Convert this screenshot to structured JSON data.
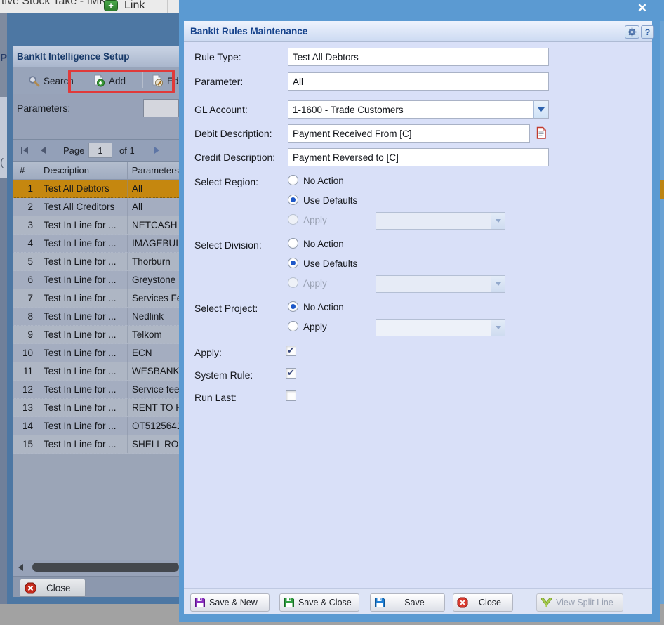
{
  "colors": {
    "modal_chrome": "#5b9ad2",
    "modal_body": "#d9e0f8",
    "annotation_red": "#e03a3a",
    "selected_row": "#c5870f",
    "dialog_title_blue": "#15428b"
  },
  "top_bar": {
    "tab_label": "tive Stock Take - IMK",
    "link_label": "Link",
    "link_plus_glyph": "+"
  },
  "left_edge": {
    "fragments": [
      "P",
      "("
    ]
  },
  "setup_window": {
    "title": "BankIt Intelligence Setup",
    "toolbar": {
      "search": "Search",
      "add": "Add",
      "edit": "Edit"
    },
    "parameters_label": "Parameters:",
    "paging": {
      "page_label": "Page",
      "page_value": "1",
      "of_label": "of 1"
    },
    "grid": {
      "columns": [
        "#",
        "Description",
        "Parameters"
      ],
      "rows": [
        {
          "n": "1",
          "desc": "Test All Debtors",
          "param": "All",
          "selected": true
        },
        {
          "n": "2",
          "desc": "Test All Creditors",
          "param": "All"
        },
        {
          "n": "3",
          "desc": "Test In Line for ...",
          "param": "NETCASH"
        },
        {
          "n": "4",
          "desc": "Test In Line for ...",
          "param": "IMAGEBUIL"
        },
        {
          "n": "5",
          "desc": "Test In Line for ...",
          "param": "Thorburn"
        },
        {
          "n": "6",
          "desc": "Test In Line for ...",
          "param": "Greystone"
        },
        {
          "n": "7",
          "desc": "Test In Line for ...",
          "param": "Services Fe"
        },
        {
          "n": "8",
          "desc": "Test In Line for ...",
          "param": "Nedlink"
        },
        {
          "n": "9",
          "desc": "Test In Line for ...",
          "param": "Telkom"
        },
        {
          "n": "10",
          "desc": "Test In Line for ...",
          "param": "ECN"
        },
        {
          "n": "11",
          "desc": "Test In Line for ...",
          "param": "WESBANK"
        },
        {
          "n": "12",
          "desc": "Test In Line for ...",
          "param": "Service fee"
        },
        {
          "n": "13",
          "desc": "Test In Line for ...",
          "param": "RENT TO H"
        },
        {
          "n": "14",
          "desc": "Test In Line for ...",
          "param": "OT5125641"
        },
        {
          "n": "15",
          "desc": "Test In Line for ...",
          "param": "SHELL ROS"
        }
      ]
    },
    "close_label": "Close"
  },
  "dialog": {
    "title": "BankIt Rules Maintenance",
    "close_glyph": "✕",
    "help_glyph": "?",
    "fields": {
      "rule_type": {
        "label": "Rule Type:",
        "value": "Test All Debtors"
      },
      "parameter": {
        "label": "Parameter:",
        "value": "All"
      },
      "gl_account": {
        "label": "GL Account:",
        "value": "1-1600 - Trade Customers"
      },
      "debit_desc": {
        "label": "Debit Description:",
        "value": "Payment Received From [C]"
      },
      "credit_desc": {
        "label": "Credit Description:",
        "value": "Payment Reversed to [C]"
      }
    },
    "region": {
      "label": "Select Region:",
      "options": [
        {
          "text": "No Action",
          "on": false
        },
        {
          "text": "Use Defaults",
          "on": true
        },
        {
          "text": "Apply",
          "on": false,
          "disabled": true
        }
      ]
    },
    "division": {
      "label": "Select Division:",
      "options": [
        {
          "text": "No Action",
          "on": false
        },
        {
          "text": "Use Defaults",
          "on": true
        },
        {
          "text": "Apply",
          "on": false,
          "disabled": true
        }
      ]
    },
    "project": {
      "label": "Select Project:",
      "options": [
        {
          "text": "No Action",
          "on": true
        },
        {
          "text": "Apply",
          "on": false
        }
      ]
    },
    "checkboxes": {
      "apply": {
        "label": "Apply:",
        "on": true
      },
      "system_rule": {
        "label": "System Rule:",
        "on": true
      },
      "run_last": {
        "label": "Run Last:",
        "on": false
      }
    },
    "footer": {
      "save_new": "Save & New",
      "save_close": "Save & Close",
      "save": "Save",
      "close": "Close",
      "view_split": "View Split Line"
    }
  }
}
